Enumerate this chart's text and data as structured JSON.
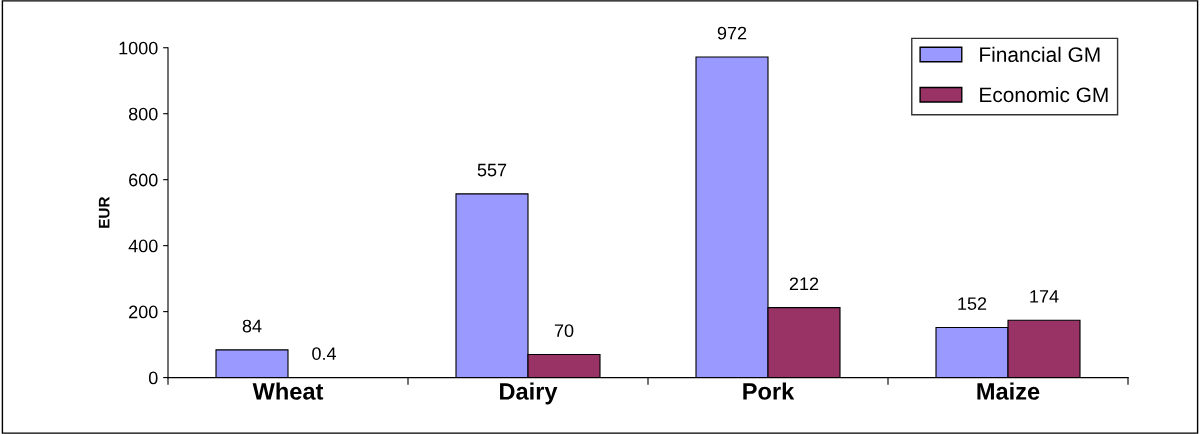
{
  "chart_data": {
    "type": "bar",
    "ylabel": "EUR",
    "categories": [
      "Wheat",
      "Dairy",
      "Pork",
      "Maize"
    ],
    "series": [
      {
        "name": "Financial GM",
        "color": "#9999ff",
        "values": [
          84,
          557,
          972,
          152
        ]
      },
      {
        "name": "Economic GM",
        "color": "#993366",
        "values": [
          0.4,
          70,
          212,
          174
        ]
      }
    ],
    "ylim": [
      0,
      1000
    ],
    "yticks": [
      0,
      200,
      400,
      600,
      800,
      1000
    ],
    "grid": false,
    "legend": "top right",
    "data_labels": true
  }
}
